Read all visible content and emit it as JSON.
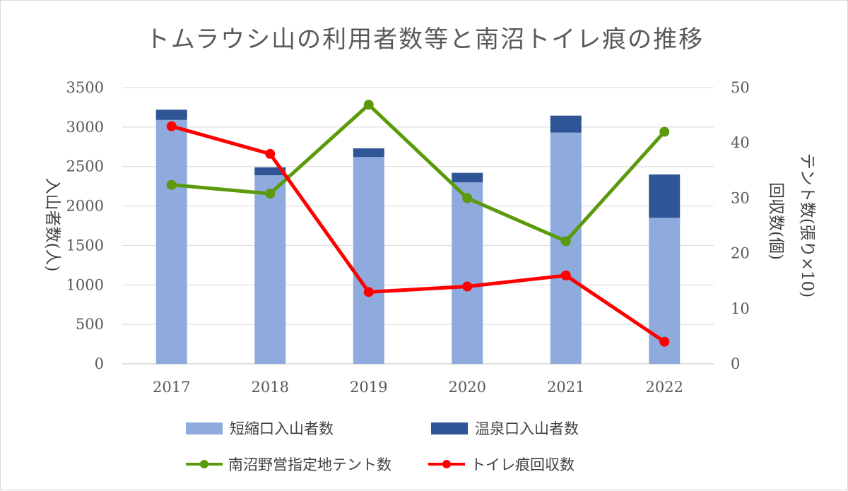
{
  "chart_data": {
    "type": "bar",
    "title": "トムラウシ山の利用者数等と南沼トイレ痕の推移",
    "categories": [
      "2017",
      "2018",
      "2019",
      "2020",
      "2021",
      "2022"
    ],
    "y_left": {
      "label": "入山者数(人)",
      "lim": [
        0,
        3500
      ],
      "ticks": [
        0,
        500,
        1000,
        1500,
        2000,
        2500,
        3000,
        3500
      ]
    },
    "y_right": {
      "label_line1": "テント数(張り×10)",
      "label_line2": "回収数(個)",
      "lim": [
        0,
        50
      ],
      "ticks": [
        0,
        10,
        20,
        30,
        40,
        50
      ]
    },
    "bar_series": [
      {
        "name": "短縮口入山者数",
        "color": "#8faadc",
        "values": [
          3090,
          2390,
          2620,
          2300,
          2930,
          1850
        ]
      },
      {
        "name": "温泉口入山者数",
        "color": "#2f5597",
        "values": [
          130,
          100,
          110,
          120,
          215,
          550
        ]
      }
    ],
    "line_series": [
      {
        "name": "南沼野営指定地テント数",
        "color": "#5b9a0a",
        "axis": "right",
        "values": [
          32.4,
          30.8,
          46.9,
          30.0,
          22.2,
          42.0
        ]
      },
      {
        "name": "トイレ痕回収数",
        "color": "#ff0000",
        "axis": "right",
        "values": [
          43,
          38,
          13,
          14,
          16,
          4
        ]
      }
    ],
    "grid": true,
    "legend_position": "bottom"
  }
}
